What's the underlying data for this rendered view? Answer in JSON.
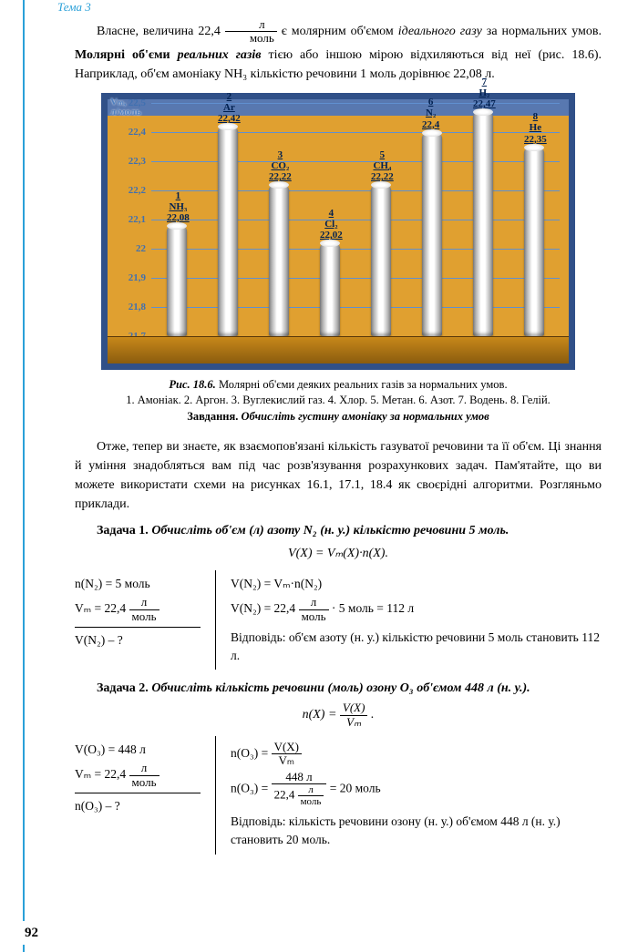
{
  "topic": "Тема 3",
  "page_number": "92",
  "para1a": "Власне, величина 22,4 ",
  "frac_top": "л",
  "frac_bot": "моль",
  "para1b": " є молярним об'ємом ",
  "para1c": "ідеального газу",
  "para1d": " за нормальних умов. ",
  "para1e": "Молярні об'єми ",
  "para1f": "реальних газів",
  "para1g": " тією або іншою мірою відхиляються від неї (рис. 18.6). Наприклад, об'єм амоніаку NH₃ кількістю речовини 1 моль дорівнює 22,08 л.",
  "chart": {
    "y_title_1": "Vₘ,",
    "y_title_2": "л/моль",
    "y_min": 21.7,
    "y_max": 22.5,
    "y_step": 0.1,
    "bar_color": "#cccccc",
    "bg_top": "#5878b0",
    "bg_main": "#e0a030",
    "bars": [
      {
        "n": "1",
        "sym": "NH₃",
        "val": 22.08,
        "lbl": "22,08"
      },
      {
        "n": "2",
        "sym": "Ar",
        "val": 22.42,
        "lbl": "22,42"
      },
      {
        "n": "3",
        "sym": "CO₂",
        "val": 22.22,
        "lbl": "22,22"
      },
      {
        "n": "4",
        "sym": "Cl₂",
        "val": 22.02,
        "lbl": "22,02"
      },
      {
        "n": "5",
        "sym": "CH₄",
        "val": 22.22,
        "lbl": "22,22"
      },
      {
        "n": "6",
        "sym": "N₂",
        "val": 22.4,
        "lbl": "22,4"
      },
      {
        "n": "7",
        "sym": "H₂",
        "val": 22.47,
        "lbl": "22,47"
      },
      {
        "n": "8",
        "sym": "He",
        "val": 22.35,
        "lbl": "22,35"
      }
    ],
    "y_ticks": [
      "22,5",
      "22,4",
      "22,3",
      "22,2",
      "22,1",
      "22",
      "21,9",
      "21,8",
      "21,7"
    ]
  },
  "caption_a": "Рис. 18.6.",
  "caption_b": " Молярні об'єми деяких реальних газів за нормальних умов.",
  "caption_c": "1. Амоніак. 2. Аргон. 3. Вуглекислий газ. 4. Хлор. 5. Метан. 6. Азот. 7. Водень. 8. Гелій. ",
  "caption_d": "Завдання.",
  "caption_e": " Обчисліть густину амоніаку за нормальних умов",
  "para2": "Отже, тепер ви знаєте, як взаємопов'язані кількість газуватої речовини та її об'єм. Ці знання й уміння знадобляться вам під час розв'язування розрахункових задач. Пам'ятайте, що ви можете використати схеми на рисунках 16.1, 17.1, 18.4 як своєрідні алгоритми. Розгляньмо приклади.",
  "task1_title": "Задача 1. ",
  "task1_text": "Обчисліть об'єм (л) азоту N₂ (н. у.) кількістю речовини 5 моль.",
  "task1_formula": "V(X) = Vₘ(X)·n(X).",
  "t1_given": {
    "l1": "n(N₂) = 5 моль",
    "l2a": "Vₘ = 22,4 ",
    "l3": "V(N₂) – ?"
  },
  "t1_work": {
    "l1": "V(N₂) = Vₘ·n(N₂)",
    "l2a": "V(N₂) = 22,4 ",
    "l2b": " · 5 моль = 112 л",
    "ans": "Відповідь: об'єм азоту (н. у.) кількістю речовини 5 моль становить 112 л."
  },
  "task2_title": "Задача 2. ",
  "task2_text": "Обчисліть кількість речовини (моль) озону O₃ об'ємом 448 л (н. у.).",
  "task2_formula_a": "n(X) = ",
  "task2_formula_num": "V(X)",
  "task2_formula_den": "Vₘ",
  "t2_given": {
    "l1": "V(O₃) = 448 л",
    "l2a": "Vₘ = 22,4 ",
    "l3": "n(O₃) – ?"
  },
  "t2_work": {
    "l1a": "n(O₃) = ",
    "l1num": "V(X)",
    "l1den": "Vₘ",
    "l2a": "n(O₃) = ",
    "l2num": "448 л",
    "l2den_a": "22,4 ",
    "l2b": " = 20 моль",
    "ans": "Відповідь: кількість речовини озону (н. у.) об'ємом 448 л (н. у.) становить 20 моль."
  }
}
